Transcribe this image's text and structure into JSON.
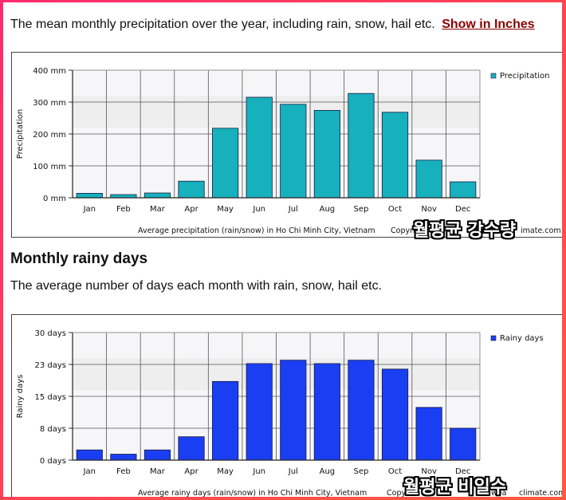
{
  "intro": {
    "text": "The mean monthly precipitation over the year, including rain, snow, hail etc.",
    "link": "Show in Inches"
  },
  "section2": {
    "heading": "Monthly rainy days",
    "text": "The average number of days each month with rain, snow, hail etc."
  },
  "overlays": {
    "precip": "월평균 강수량",
    "rainy": "월평균 비일수"
  },
  "chart_data": [
    {
      "type": "bar",
      "categories": [
        "Jan",
        "Feb",
        "Mar",
        "Apr",
        "May",
        "Jun",
        "Jul",
        "Aug",
        "Sep",
        "Oct",
        "Nov",
        "Dec"
      ],
      "series": [
        {
          "name": "Precipitation",
          "values": [
            14,
            10,
            15,
            52,
            218,
            315,
            293,
            274,
            327,
            268,
            118,
            50
          ],
          "color": "#17b0bd"
        }
      ],
      "ylabel": "Precipitation",
      "ylim": [
        0,
        400
      ],
      "yticks": [
        "0 mm",
        "100 mm",
        "200 mm",
        "300 mm",
        "400 mm"
      ],
      "ytick_values": [
        0,
        100,
        200,
        300,
        400
      ],
      "footer": "Average precipitation (rain/snow) in Ho Chi Minh City, Vietnam",
      "copyright_left": "Copyri",
      "copyright_right": "imate.com",
      "grid": true,
      "legend": "top-right"
    },
    {
      "type": "bar",
      "categories": [
        "Jan",
        "Feb",
        "Mar",
        "Apr",
        "May",
        "Jun",
        "Jul",
        "Aug",
        "Sep",
        "Oct",
        "Nov",
        "Dec"
      ],
      "series": [
        {
          "name": "Rainy days",
          "values": [
            2.4,
            1.4,
            2.4,
            5.5,
            18.5,
            22.7,
            23.5,
            22.7,
            23.5,
            21.4,
            12.4,
            7.5
          ],
          "color": "#1a3ff2"
        }
      ],
      "ylabel": "Rainy days",
      "ylim": [
        0,
        30
      ],
      "yticks": [
        "0 days",
        "8 days",
        "15 days",
        "23 days",
        "30 days"
      ],
      "ytick_values": [
        0,
        7.5,
        15,
        22.5,
        30
      ],
      "footer": "Average rainy days (rain/snow) in Ho Chi Minh City, Vietnam",
      "copyright_left": "Copyri",
      "copyright_right": "wea",
      "copyright_tail": "climate.com",
      "grid": true,
      "legend": "top-right"
    }
  ]
}
